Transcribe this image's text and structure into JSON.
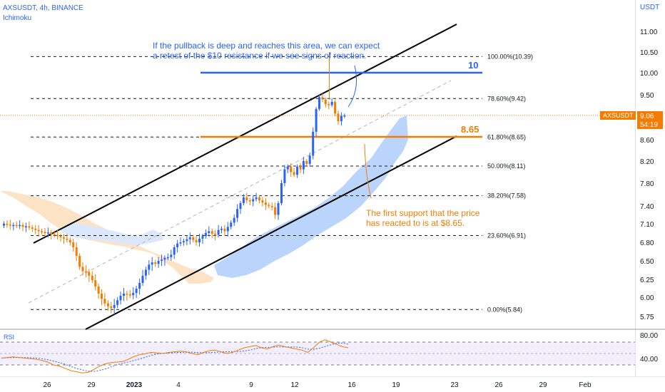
{
  "header": {
    "symbol": "AXSUSDT, 4h, BINANCE",
    "indicator": "Ichimoku"
  },
  "price_axis": {
    "currency": "USDT",
    "ticks": [
      "11.00",
      "10.50",
      "10.00",
      "9.50",
      "9.06",
      "8.60",
      "8.20",
      "7.80",
      "7.40",
      "7.10",
      "6.80",
      "6.50",
      "6.25",
      "6.00",
      "5.75"
    ]
  },
  "price_badge": {
    "symbol": "AXSUSDT",
    "price": "9.06",
    "countdown": "54:19"
  },
  "date_axis": [
    "26",
    "29",
    "2023",
    "4",
    "9",
    "12",
    "16",
    "19",
    "23",
    "26",
    "29",
    "Feb"
  ],
  "fib_levels": [
    {
      "label": "100.00%(10.39)",
      "price": 10.39
    },
    {
      "label": "78.60%(9.42)",
      "price": 9.42
    },
    {
      "label": "61.80%(8.65)",
      "price": 8.65
    },
    {
      "label": "50.00%(8.11)",
      "price": 8.11
    },
    {
      "label": "38.20%(7.58)",
      "price": 7.58
    },
    {
      "label": "23.60%(6.91)",
      "price": 6.91
    },
    {
      "label": "0.00%(5.84)",
      "price": 5.84
    }
  ],
  "levels": {
    "resistance": {
      "label": "10",
      "price": 10.0,
      "color": "#2962ff"
    },
    "support": {
      "label": "8.65",
      "price": 8.65,
      "color": "#f57c00"
    }
  },
  "annotations": {
    "top_line1": "If the pullback is deep and reaches this area, we can expect",
    "top_line2": "a retest of the $10 resistance if we see signs of reaction.",
    "bottom_line1": "The first support that the price",
    "bottom_line2": "has reacted to is at $8.65."
  },
  "rsi": {
    "label": "RSI",
    "ticks": [
      "80.00",
      "40.00"
    ]
  },
  "colors": {
    "up": "#2962ff",
    "down": "#f57c00",
    "cloud_blue": "#bbd4fb",
    "cloud_orange": "#fce3c6",
    "channel": "#000000"
  },
  "chart_data": {
    "type": "candlestick",
    "title": "AXSUSDT, 4h, BINANCE",
    "ylabel": "USDT",
    "current_price": 9.06,
    "fib_retracement": [
      10.39,
      9.42,
      8.65,
      8.11,
      7.58,
      6.91,
      5.84
    ],
    "horizontal_levels": [
      10.0,
      8.65
    ],
    "x_tick_labels": [
      "26",
      "29",
      "2023",
      "4",
      "9",
      "12",
      "16",
      "19",
      "23",
      "26",
      "29",
      "Feb"
    ],
    "close_path": [
      7.1,
      7.09,
      7.08,
      7.08,
      7.07,
      7.08,
      7.05,
      7.06,
      7.04,
      7.02,
      7.0,
      6.98,
      6.97,
      6.95,
      6.96,
      6.93,
      6.92,
      6.9,
      6.88,
      6.86,
      6.84,
      6.8,
      6.72,
      6.58,
      6.42,
      6.36,
      6.35,
      6.3,
      6.24,
      6.15,
      6.05,
      5.98,
      5.92,
      5.88,
      5.86,
      5.9,
      5.96,
      6.02,
      6.05,
      6.04,
      6.03,
      6.06,
      6.12,
      6.2,
      6.3,
      6.38,
      6.45,
      6.48,
      6.46,
      6.5,
      6.52,
      6.55,
      6.56,
      6.6,
      6.72,
      6.78,
      6.8,
      6.82,
      6.85,
      6.88,
      6.84,
      6.8,
      6.86,
      6.9,
      6.95,
      6.98,
      6.94,
      6.92,
      7.0,
      7.02,
      6.98,
      7.05,
      7.12,
      7.2,
      7.35,
      7.45,
      7.55,
      7.5,
      7.48,
      7.52,
      7.55,
      7.5,
      7.46,
      7.42,
      7.4,
      7.38,
      7.25,
      7.45,
      7.8,
      8.05,
      8.1,
      8.0,
      7.95,
      8.1,
      8.05,
      8.2,
      8.15,
      8.3,
      8.75,
      9.2,
      9.45,
      9.4,
      9.3,
      9.28,
      9.35,
      9.1,
      8.95,
      9.05,
      9.06
    ],
    "rsi": {
      "ylim": [
        0,
        100
      ],
      "levels": [
        80,
        40
      ],
      "values": [
        52,
        53,
        54,
        53,
        52,
        51,
        50,
        48,
        45,
        40,
        38,
        34,
        30,
        28,
        26,
        27,
        32,
        38,
        42,
        44,
        45,
        46,
        50,
        55,
        58,
        60,
        62,
        61,
        60,
        62,
        63,
        64,
        63,
        60,
        58,
        62,
        65,
        66,
        63,
        60,
        62,
        66,
        70,
        72,
        74,
        70,
        68,
        72,
        75,
        72,
        70,
        68,
        66,
        62,
        70,
        80,
        84,
        80,
        76,
        72,
        70
      ]
    }
  }
}
